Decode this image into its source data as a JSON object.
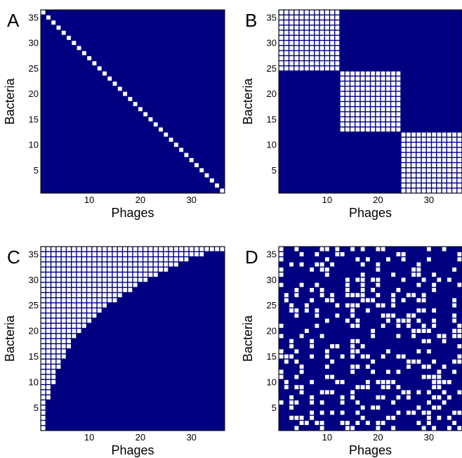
{
  "chart_data": [
    {
      "type": "heatmap",
      "panel_letter": "A",
      "pattern": "one-to-one diagonal",
      "xlabel": "Phages",
      "ylabel": "Bacteria",
      "n_phages": 36,
      "n_bacteria": 36,
      "xticks": [
        10,
        20,
        30
      ],
      "yticks": [
        5,
        10,
        15,
        20,
        25,
        30,
        35
      ],
      "background_color": "#000080",
      "cell_color": "#ffffff",
      "infection_rule": "phage i infects bacterium 37-i"
    },
    {
      "type": "heatmap",
      "panel_letter": "B",
      "pattern": "modular block-diagonal",
      "xlabel": "Phages",
      "ylabel": "Bacteria",
      "n_phages": 36,
      "n_bacteria": 36,
      "xticks": [
        10,
        20,
        30
      ],
      "yticks": [
        5,
        10,
        15,
        20,
        25,
        30,
        35
      ],
      "background_color": "#000080",
      "cell_color": "#ffffff",
      "modules": [
        {
          "phages": [
            1,
            12
          ],
          "bacteria": [
            25,
            36
          ]
        },
        {
          "phages": [
            13,
            24
          ],
          "bacteria": [
            13,
            24
          ]
        },
        {
          "phages": [
            25,
            36
          ],
          "bacteria": [
            1,
            12
          ]
        }
      ]
    },
    {
      "type": "heatmap",
      "panel_letter": "C",
      "pattern": "nested",
      "xlabel": "Phages",
      "ylabel": "Bacteria",
      "n_phages": 36,
      "n_bacteria": 36,
      "xticks": [
        10,
        20,
        30
      ],
      "yticks": [
        5,
        10,
        15,
        20,
        25,
        30,
        35
      ],
      "background_color": "#000080",
      "cell_color": "#ffffff",
      "lowest_infected_bacterium_per_phage": [
        1,
        7,
        10,
        13,
        15,
        17,
        19,
        20,
        21,
        22,
        23,
        24,
        25,
        26,
        26,
        27,
        28,
        28,
        29,
        30,
        30,
        31,
        31,
        32,
        32,
        33,
        33,
        34,
        34,
        35,
        35,
        35,
        36,
        36,
        36,
        36
      ]
    },
    {
      "type": "heatmap",
      "panel_letter": "D",
      "pattern": "random",
      "xlabel": "Phages",
      "ylabel": "Bacteria",
      "n_phages": 36,
      "n_bacteria": 36,
      "xticks": [
        10,
        20,
        30
      ],
      "yticks": [
        5,
        10,
        15,
        20,
        25,
        30,
        35
      ],
      "background_color": "#000080",
      "cell_color": "#ffffff",
      "infection_density": 0.25,
      "random_seed": 20
    }
  ]
}
